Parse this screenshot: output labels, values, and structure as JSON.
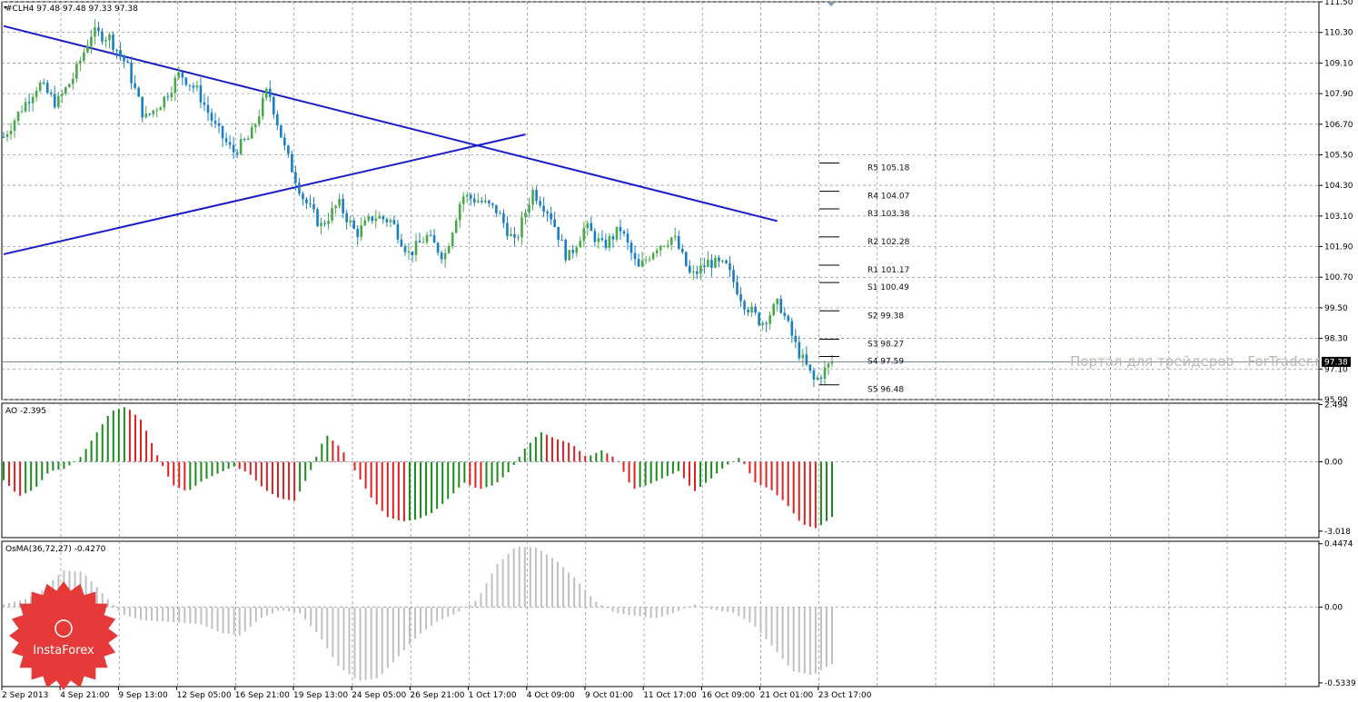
{
  "main_panel": {
    "header": "#CLH4  97.48 97.48 97.33 97.38",
    "price_label": "97.38",
    "watermark": "Портал для трейдеров - ForTrader.ru"
  },
  "ao_panel": {
    "header": "AO -2.395"
  },
  "osma_panel": {
    "header": "OsMA(36,72,27) -0.4270"
  },
  "logo": {
    "text": "InstaForex"
  },
  "colors": {
    "up_candle": "#4aa84a",
    "down_candle": "#1a7fc0",
    "trendline": "#1c1cc8",
    "ao_up": "#1a8a1a",
    "ao_down": "#e02020",
    "osma": "#c0c0c0",
    "grid": "#7a8a9a",
    "logo_red": "#e63a3a"
  },
  "chart_data": [
    {
      "type": "candlestick",
      "symbol": "#CLH4",
      "ylim": [
        95.9,
        111.5
      ],
      "y_ticks": [
        "111.50",
        "110.30",
        "109.10",
        "107.90",
        "106.70",
        "105.50",
        "104.30",
        "103.10",
        "101.90",
        "100.70",
        "99.50",
        "98.30",
        "97.10",
        "95.90"
      ],
      "x_labels": [
        "2 Sep 2013",
        "4 Sep 21:00",
        "9 Sep 13:00",
        "12 Sep 05:00",
        "16 Sep 21:00",
        "19 Sep 13:00",
        "24 Sep 05:00",
        "26 Sep 21:00",
        "1 Oct 17:00",
        "4 Oct 09:00",
        "9 Oct 01:00",
        "11 Oct 17:00",
        "16 Oct 09:00",
        "21 Oct 01:00",
        "23 Oct 17:00"
      ],
      "close_path": [
        106.2,
        107.3,
        108.3,
        107.5,
        108.6,
        110.3,
        110.1,
        109.0,
        106.9,
        107.6,
        108.7,
        108.0,
        106.6,
        105.6,
        106.2,
        108.1,
        105.6,
        103.8,
        102.7,
        103.6,
        102.4,
        103.1,
        102.9,
        101.6,
        102.3,
        101.5,
        103.9,
        103.7,
        103.3,
        102.0,
        104.1,
        103.2,
        101.4,
        102.7,
        101.9,
        102.6,
        101.0,
        101.9,
        102.3,
        100.7,
        101.3,
        101.1,
        99.7,
        98.9,
        99.7,
        97.9,
        96.6,
        97.38
      ],
      "levels": [
        {
          "name": "R5 105.18",
          "value": 105.18
        },
        {
          "name": "R4 104.07",
          "value": 104.07
        },
        {
          "name": "R3 103.38",
          "value": 103.38
        },
        {
          "name": "R2 102.28",
          "value": 102.28
        },
        {
          "name": "R1 101.17",
          "value": 101.17
        },
        {
          "name": "S1 100.49",
          "value": 100.49
        },
        {
          "name": "S2 99.38",
          "value": 99.38
        },
        {
          "name": "S3 98.27",
          "value": 98.27
        },
        {
          "name": "S4 97.59",
          "value": 97.59
        },
        {
          "name": "S5 96.48",
          "value": 96.48
        }
      ],
      "current_price": 97.38,
      "trendlines": [
        {
          "from": [
            0,
            110.55
          ],
          "to": [
            212,
            102.9
          ]
        },
        {
          "from": [
            0,
            101.6
          ],
          "to": [
            143,
            106.3
          ]
        }
      ]
    },
    {
      "type": "histogram",
      "name": "AO",
      "ylim": [
        -3.3,
        2.55
      ],
      "y_ticks": [
        "2.494",
        "0.00",
        "-3.018"
      ],
      "values_path": [
        -0.8,
        -1.5,
        -1.2,
        -0.4,
        -0.3,
        0.2,
        1.2,
        2.2,
        2.4,
        1.8,
        0.3,
        -1.0,
        -1.3,
        -0.8,
        -0.5,
        -0.2,
        -0.5,
        -1.2,
        -1.6,
        -1.7,
        -0.4,
        1.2,
        0.6,
        -0.5,
        -1.6,
        -2.4,
        -2.6,
        -2.5,
        -2.2,
        -1.6,
        -0.9,
        -1.2,
        -1.0,
        -0.4,
        0.6,
        1.3,
        1.0,
        0.8,
        0.2,
        0.5,
        0.1,
        -1.2,
        -1.0,
        -0.7,
        -0.4,
        -1.3,
        -0.8,
        -0.2,
        0.2,
        -0.9,
        -1.2,
        -1.8,
        -2.7,
        -2.9,
        -2.4
      ]
    },
    {
      "type": "histogram",
      "name": "OsMA(36,72,27)",
      "ylim": [
        -0.56,
        0.465
      ],
      "y_ticks": [
        "0.4474",
        "0.00",
        "-0.5339"
      ],
      "values_path": [
        0.02,
        0.05,
        0.12,
        0.26,
        0.25,
        0.1,
        -0.05,
        -0.09,
        -0.1,
        -0.11,
        -0.12,
        -0.18,
        -0.2,
        -0.08,
        -0.02,
        -0.04,
        -0.2,
        -0.42,
        -0.52,
        -0.5,
        -0.35,
        -0.2,
        -0.1,
        -0.04,
        0.05,
        0.3,
        0.43,
        0.42,
        0.33,
        0.2,
        0.04,
        -0.04,
        -0.06,
        -0.08,
        -0.04,
        0.02,
        -0.02,
        -0.04,
        -0.12,
        -0.28,
        -0.45,
        -0.48,
        -0.4
      ]
    }
  ]
}
